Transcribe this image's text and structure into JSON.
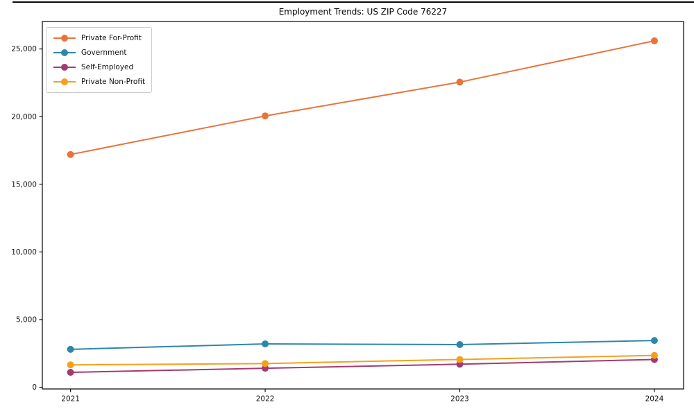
{
  "figure": {
    "top_border": true
  },
  "chart_data": {
    "type": "line",
    "title": "Employment Trends: US ZIP Code 76227",
    "xlabel": "",
    "ylabel": "",
    "grid": false,
    "legend_position": "upper left",
    "x": [
      2021,
      2022,
      2023,
      2024
    ],
    "x_tick_labels": [
      "2021",
      "2022",
      "2023",
      "2024"
    ],
    "y_ticks": [
      {
        "value": 0,
        "label": "0"
      },
      {
        "value": 5000,
        "label": "5,000"
      },
      {
        "value": 10000,
        "label": "10,000"
      },
      {
        "value": 15000,
        "label": "15,000"
      },
      {
        "value": 20000,
        "label": "20,000"
      },
      {
        "value": 25000,
        "label": "25,000"
      }
    ],
    "xlim": [
      2020.855,
      2024.15
    ],
    "ylim": [
      -130,
      27030
    ],
    "series": [
      {
        "name": "Private For-Profit",
        "color": "#E8743B",
        "values": [
          17200,
          20050,
          22550,
          25600
        ]
      },
      {
        "name": "Government",
        "color": "#2E86AB",
        "values": [
          2800,
          3200,
          3150,
          3450
        ]
      },
      {
        "name": "Self-Employed",
        "color": "#A23B72",
        "values": [
          1100,
          1400,
          1700,
          2050
        ]
      },
      {
        "name": "Private Non-Profit",
        "color": "#F5A01B",
        "values": [
          1650,
          1750,
          2050,
          2350
        ]
      }
    ]
  }
}
